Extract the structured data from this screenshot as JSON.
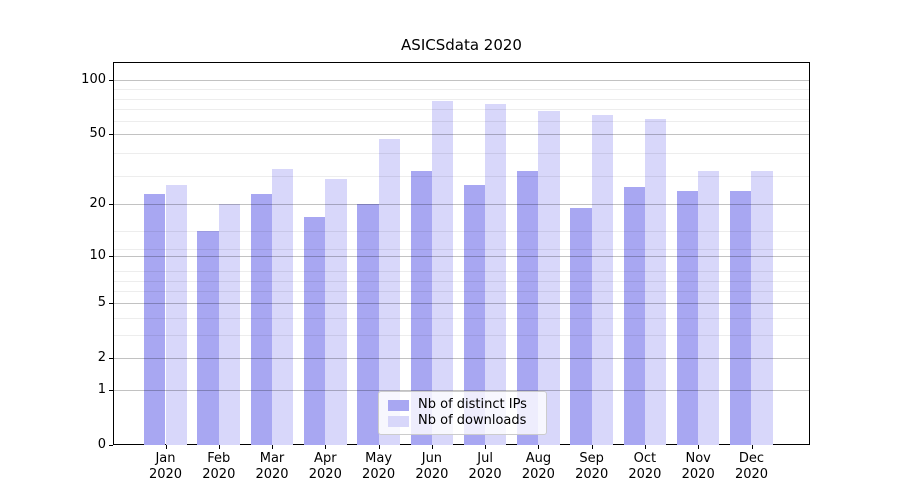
{
  "title": "ASICSdata 2020",
  "chart_data": {
    "type": "bar",
    "title": "ASICSdata 2020",
    "x_categories_line1": [
      "Jan",
      "Feb",
      "Mar",
      "Apr",
      "May",
      "Jun",
      "Jul",
      "Aug",
      "Sep",
      "Oct",
      "Nov",
      "Dec"
    ],
    "x_categories_line2": "2020",
    "series": [
      {
        "name": "Nb of distinct IPs",
        "color": "#a8a7f2",
        "values": [
          23,
          14,
          23,
          17,
          20,
          31,
          26,
          31,
          19,
          25,
          24,
          24
        ]
      },
      {
        "name": "Nb of downloads",
        "color": "#d8d7fa",
        "values": [
          26,
          20,
          32,
          28,
          47,
          77,
          74,
          67,
          64,
          61,
          31,
          31
        ]
      }
    ],
    "yscale": "log10(1+y)",
    "ylim": [
      0,
      126
    ],
    "ytick_values": [
      0,
      1,
      2,
      5,
      10,
      20,
      50,
      100
    ],
    "ytick_labels": [
      "0",
      "1",
      "2",
      "5",
      "10",
      "20",
      "50",
      "100"
    ],
    "minor_grid_values": [
      3,
      4,
      6,
      7,
      8,
      11,
      14,
      29,
      39,
      59,
      69,
      79,
      89
    ],
    "grid": true,
    "legend_position": "lower center"
  },
  "colors": {
    "major_grid": "rgba(0,0,0,0.24)",
    "minor_grid": "rgba(0,0,0,0.07)",
    "spine": "#000000"
  }
}
